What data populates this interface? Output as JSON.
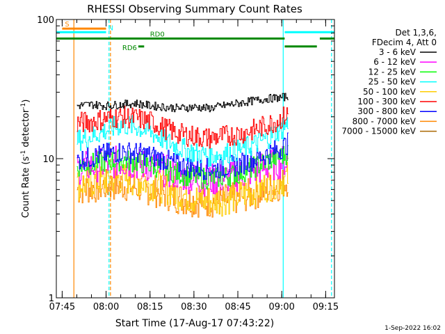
{
  "chart_data": {
    "type": "line",
    "title": "RHESSI Observing Summary Count Rates",
    "xlabel": "Start Time (17-Aug-17 07:43:22)",
    "ylabel_main": "Count Rate (s",
    "ylabel_sup": "-1",
    "ylabel_mid": " detector",
    "ylabel_end": ")",
    "y_scale": "log",
    "ylim": [
      1,
      100
    ],
    "y_major_ticks": [
      {
        "value": 1,
        "label": "1"
      },
      {
        "value": 10,
        "label": "10"
      },
      {
        "value": 100,
        "label": "100"
      }
    ],
    "xlim_minutes": [
      -2,
      93
    ],
    "x_ticks": [
      {
        "minutes": 0,
        "label": "07:45"
      },
      {
        "minutes": 15,
        "label": "08:00"
      },
      {
        "minutes": 30,
        "label": "08:15"
      },
      {
        "minutes": 45,
        "label": "08:30"
      },
      {
        "minutes": 60,
        "label": "08:45"
      },
      {
        "minutes": 75,
        "label": "09:00"
      },
      {
        "minutes": 90,
        "label": "09:15"
      }
    ],
    "legend_header": [
      "Det 1,3,6,",
      "FDecim 4, Att 0"
    ],
    "series": [
      {
        "name": "3 - 6 keV",
        "color": "#000000",
        "t": [
          5,
          10,
          15,
          20,
          25,
          30,
          35,
          40,
          45,
          50,
          55,
          60,
          65,
          70,
          75,
          77
        ],
        "values": [
          24,
          24.5,
          24,
          24.5,
          25,
          24,
          23.5,
          23,
          23.5,
          23,
          24,
          25,
          26,
          27,
          27.5,
          28
        ]
      },
      {
        "name": "6 - 12 keV",
        "color": "#ff00ff",
        "t": [
          5,
          10,
          15,
          20,
          25,
          30,
          35,
          40,
          45,
          50,
          55,
          60,
          65,
          70,
          75,
          77
        ],
        "values": [
          8.5,
          8.8,
          9.2,
          9.5,
          9.2,
          8.8,
          8.2,
          7.6,
          7.2,
          7.0,
          7.2,
          7.6,
          8.2,
          8.8,
          9.5,
          9.8
        ]
      },
      {
        "name": "12 - 25 keV",
        "color": "#00ff00",
        "t": [
          5,
          10,
          15,
          20,
          25,
          30,
          35,
          40,
          45,
          50,
          55,
          60,
          65,
          70,
          75,
          77
        ],
        "values": [
          8.8,
          9.2,
          9.6,
          9.8,
          9.5,
          9.0,
          8.4,
          7.8,
          7.4,
          7.2,
          7.4,
          7.8,
          8.6,
          9.6,
          10.5,
          11
        ]
      },
      {
        "name": "25 - 50 keV",
        "color": "#00ffff",
        "t": [
          5,
          10,
          15,
          20,
          25,
          30,
          35,
          40,
          45,
          50,
          55,
          60,
          65,
          70,
          75,
          77
        ],
        "values": [
          13.5,
          14.5,
          16,
          17.5,
          17,
          15.5,
          13.5,
          12,
          11,
          10.5,
          10.8,
          11.5,
          12.5,
          14,
          16.5,
          18
        ]
      },
      {
        "name": "50 - 100 keV",
        "color": "#ffcc00",
        "t": [
          5,
          10,
          15,
          20,
          25,
          30,
          35,
          40,
          45,
          50,
          55,
          60,
          65,
          70,
          75,
          77
        ],
        "values": [
          6.5,
          6.8,
          7.0,
          7.2,
          7.0,
          6.6,
          6.2,
          5.6,
          5.2,
          5.0,
          5.1,
          5.4,
          5.9,
          6.4,
          7.0,
          7.4
        ]
      },
      {
        "name": "100 - 300 keV",
        "color": "#ff0000",
        "t": [
          5,
          10,
          15,
          20,
          25,
          30,
          35,
          40,
          45,
          50,
          55,
          60,
          65,
          70,
          75,
          77
        ],
        "values": [
          18,
          18.5,
          19.5,
          20,
          19.5,
          18.5,
          16.5,
          15,
          14.5,
          14,
          14.5,
          15,
          16,
          17.5,
          19.5,
          21
        ]
      },
      {
        "name": "300 - 800 keV",
        "color": "#0000ff",
        "t": [
          5,
          10,
          15,
          20,
          25,
          30,
          35,
          40,
          45,
          50,
          55,
          60,
          65,
          70,
          75,
          77
        ],
        "values": [
          9.8,
          10.2,
          10.8,
          11.2,
          11,
          10.5,
          9.8,
          9.0,
          8.6,
          8.4,
          8.6,
          9.0,
          9.8,
          10.8,
          12,
          12.8
        ]
      },
      {
        "name": "800 - 7000 keV",
        "color": "#ff8800",
        "t": [
          5,
          10,
          15,
          20,
          25,
          30,
          35,
          40,
          45,
          50,
          55,
          60,
          65,
          70,
          75,
          77
        ],
        "values": [
          6.0,
          6.2,
          6.4,
          6.5,
          6.3,
          6.0,
          5.6,
          5.2,
          5.0,
          4.9,
          5.0,
          5.2,
          5.6,
          6.0,
          6.6,
          7.0
        ]
      },
      {
        "name": "7000 - 15000 keV",
        "color": "#aa6600",
        "t": [],
        "values": []
      }
    ],
    "flags": [
      {
        "label": "S",
        "color": "#ff8800",
        "t0": 0,
        "t1": 15,
        "level": 86
      },
      {
        "label": "N",
        "color": "#00ffff",
        "t0": -2,
        "t1": 15,
        "level": 81
      },
      {
        "label": "",
        "color": "#00ffff",
        "t0": 76,
        "t1": 93,
        "level": 81
      },
      {
        "label": "RD0",
        "color": "#008800",
        "t0": -2,
        "t1": 76,
        "level": 73
      },
      {
        "label": "",
        "color": "#008800",
        "t0": 88,
        "t1": 93,
        "level": 73
      },
      {
        "label": "RD6",
        "color": "#008800",
        "t0": 26,
        "t1": 28,
        "level": 64
      },
      {
        "label": "",
        "color": "#008800",
        "t0": 76,
        "t1": 87,
        "level": 64
      }
    ],
    "vlines": [
      {
        "t": 4,
        "color": "#ff8800",
        "style": "solid"
      },
      {
        "t": 16.5,
        "color": "#ff8800",
        "style": "dashed"
      },
      {
        "t": 16,
        "color": "#00ffff",
        "style": "dashed"
      },
      {
        "t": 75.5,
        "color": "#00ffff",
        "style": "solid"
      },
      {
        "t": 92,
        "color": "#00ffff",
        "style": "dashed"
      }
    ],
    "grid": false,
    "legend_position": "right"
  },
  "timestamp": "1-Sep-2022 16:02"
}
